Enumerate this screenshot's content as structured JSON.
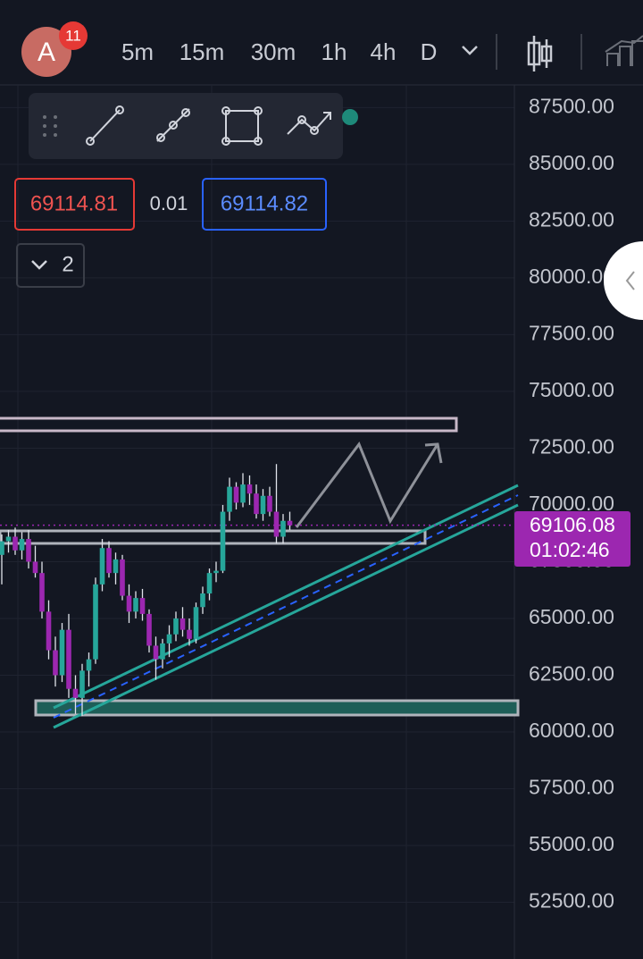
{
  "header": {
    "avatar": "A",
    "badge": "11",
    "timeframes": [
      "5m",
      "15m",
      "30m",
      "1h",
      "4h",
      "D"
    ],
    "active_timeframe": 4
  },
  "quote": {
    "bid": "69114.81",
    "spread": "0.01",
    "ask": "69114.82",
    "indicators_count": "2"
  },
  "chart_data": {
    "type": "candlestick",
    "ylim": [
      50000,
      88500
    ],
    "yticks": [
      {
        "value": 87500,
        "label": "87500.00"
      },
      {
        "value": 85000,
        "label": "85000.00"
      },
      {
        "value": 82500,
        "label": "82500.00"
      },
      {
        "value": 80000,
        "label": "80000.00"
      },
      {
        "value": 77500,
        "label": "77500.00"
      },
      {
        "value": 75000,
        "label": "75000.00"
      },
      {
        "value": 72500,
        "label": "72500.00"
      },
      {
        "value": 70000,
        "label": "70000.00"
      },
      {
        "value": 67500,
        "label": "67500.00"
      },
      {
        "value": 65000,
        "label": "65000.00"
      },
      {
        "value": 62500,
        "label": "62500.00"
      },
      {
        "value": 60000,
        "label": "60000.00"
      },
      {
        "value": 57500,
        "label": "57500.00"
      },
      {
        "value": 55000,
        "label": "55000.00"
      },
      {
        "value": 52500,
        "label": "52500.00"
      }
    ],
    "up_color": "#26a69a",
    "down_color": "#9c27b0",
    "ohlc": [
      [
        67800,
        68700,
        66500,
        68400
      ],
      [
        68400,
        68900,
        67900,
        68600
      ],
      [
        68600,
        69000,
        67800,
        68000
      ],
      [
        68000,
        68800,
        67600,
        68500
      ],
      [
        68500,
        68900,
        67200,
        67500
      ],
      [
        67500,
        68200,
        66800,
        67000
      ],
      [
        67000,
        67500,
        65000,
        65300
      ],
      [
        65300,
        65800,
        63200,
        63600
      ],
      [
        63600,
        64200,
        62000,
        62500
      ],
      [
        62500,
        64800,
        62200,
        64500
      ],
      [
        64500,
        65200,
        61500,
        61900
      ],
      [
        61900,
        62500,
        60800,
        61500
      ],
      [
        61500,
        63000,
        60700,
        62700
      ],
      [
        62700,
        63500,
        62000,
        63200
      ],
      [
        63200,
        66800,
        63000,
        66500
      ],
      [
        66500,
        68500,
        66200,
        68100
      ],
      [
        68100,
        68400,
        66800,
        67000
      ],
      [
        67000,
        67900,
        66500,
        67600
      ],
      [
        67600,
        67800,
        65800,
        66000
      ],
      [
        66000,
        66500,
        64800,
        65300
      ],
      [
        65300,
        66200,
        65000,
        65900
      ],
      [
        65900,
        66300,
        64900,
        65200
      ],
      [
        65200,
        65400,
        63500,
        63800
      ],
      [
        63800,
        64200,
        62300,
        63200
      ],
      [
        63200,
        64100,
        62800,
        63900
      ],
      [
        63900,
        64700,
        63300,
        64300
      ],
      [
        64300,
        65300,
        64000,
        65000
      ],
      [
        65000,
        65500,
        64200,
        64500
      ],
      [
        64500,
        65000,
        63800,
        64100
      ],
      [
        64100,
        65700,
        63900,
        65500
      ],
      [
        65500,
        66400,
        65200,
        66100
      ],
      [
        66100,
        67200,
        65800,
        67000
      ],
      [
        67000,
        67500,
        66600,
        67100
      ],
      [
        67100,
        70000,
        67000,
        69700
      ],
      [
        69700,
        71200,
        69300,
        70800
      ],
      [
        70800,
        71000,
        69800,
        70100
      ],
      [
        70100,
        71400,
        69900,
        70900
      ],
      [
        70900,
        71300,
        70000,
        70500
      ],
      [
        70500,
        70900,
        69400,
        69600
      ],
      [
        69600,
        70700,
        69300,
        70400
      ],
      [
        70400,
        70800,
        69500,
        69700
      ],
      [
        69700,
        71800,
        68300,
        68600
      ],
      [
        68600,
        69600,
        68300,
        69300
      ],
      [
        69300,
        69700,
        68900,
        69100
      ]
    ],
    "last_price": {
      "value": 69106.08,
      "label": "69106.08"
    },
    "countdown": "01:02:46"
  }
}
